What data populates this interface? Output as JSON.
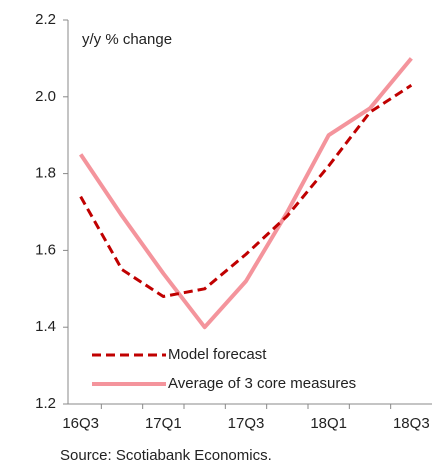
{
  "chart_data": {
    "type": "line",
    "annotation": "y/y % change",
    "source": "Source: Scotiabank Economics.",
    "categories": [
      "16Q3",
      null,
      "17Q1",
      null,
      "17Q3",
      null,
      "18Q1",
      null,
      "18Q3"
    ],
    "series": [
      {
        "name": "Model forecast",
        "color": "#c00000",
        "dashed": true,
        "values": [
          1.74,
          1.55,
          1.48,
          1.5,
          1.59,
          1.69,
          1.82,
          1.96,
          2.03
        ]
      },
      {
        "name": "Average of 3 core measures",
        "color": "#f4949c",
        "dashed": false,
        "values": [
          1.85,
          1.69,
          1.54,
          1.4,
          1.52,
          1.7,
          1.9,
          1.97,
          2.1
        ]
      }
    ],
    "ylim": [
      1.2,
      2.2
    ],
    "yticks": [
      {
        "value": 1.2,
        "label": "1.2"
      },
      {
        "value": 1.4,
        "label": "1.4"
      },
      {
        "value": 1.6,
        "label": "1.6"
      },
      {
        "value": 1.8,
        "label": "1.8"
      },
      {
        "value": 2.0,
        "label": "2.0"
      },
      {
        "value": 2.2,
        "label": "2.2"
      }
    ],
    "grid": false,
    "legend": "lower-left"
  }
}
